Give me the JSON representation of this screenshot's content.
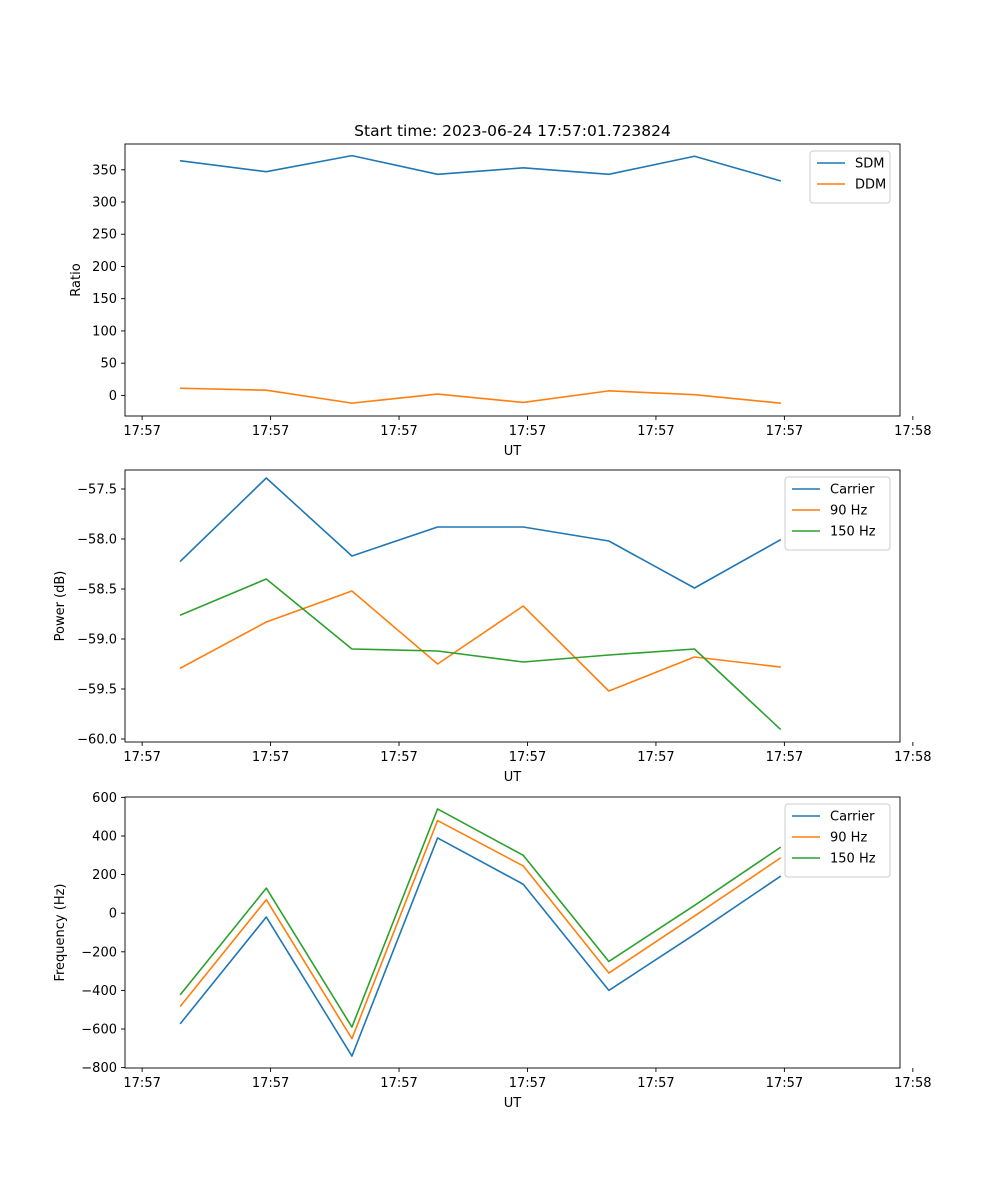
{
  "chart_data": [
    {
      "type": "line",
      "title": "Start time: 2023-06-24 17:57:01.723824",
      "xlabel": "UT",
      "ylabel": "Ratio",
      "x": [
        1,
        2,
        3,
        4,
        5,
        6,
        7,
        8
      ],
      "xlim": [
        0.35,
        9.4
      ],
      "xticks": [
        0.55,
        2.05,
        3.55,
        5.05,
        6.55,
        8.05,
        9.55
      ],
      "xtick_labels": [
        "17:57",
        "17:57",
        "17:57",
        "17:57",
        "17:57",
        "17:57",
        "17:58"
      ],
      "ylim": [
        -32,
        390
      ],
      "yticks": [
        0,
        50,
        100,
        150,
        200,
        250,
        300,
        350
      ],
      "ytick_labels": [
        "0",
        "50",
        "100",
        "150",
        "200",
        "250",
        "300",
        "350"
      ],
      "grid": false,
      "legend_position": "top-right",
      "series": [
        {
          "name": "SDM",
          "color": "#1f77b4",
          "values": [
            364,
            347,
            372,
            343,
            353,
            343,
            371,
            333
          ]
        },
        {
          "name": "DDM",
          "color": "#ff7f0e",
          "values": [
            11,
            8,
            -12,
            2,
            -11,
            7,
            1,
            -12
          ]
        }
      ]
    },
    {
      "type": "line",
      "title": "",
      "xlabel": "UT",
      "ylabel": "Power (dB)",
      "x": [
        1,
        2,
        3,
        4,
        5,
        6,
        7,
        8
      ],
      "xlim": [
        0.35,
        9.4
      ],
      "xticks": [
        0.55,
        2.05,
        3.55,
        5.05,
        6.55,
        8.05,
        9.55
      ],
      "xtick_labels": [
        "17:57",
        "17:57",
        "17:57",
        "17:57",
        "17:57",
        "17:57",
        "17:58"
      ],
      "ylim": [
        -60.03,
        -57.31
      ],
      "yticks": [
        -60.0,
        -59.5,
        -59.0,
        -58.5,
        -58.0,
        -57.5
      ],
      "ytick_labels": [
        "−60.0",
        "−59.5",
        "−59.0",
        "−58.5",
        "−58.0",
        "−57.5"
      ],
      "grid": false,
      "legend_position": "top-right",
      "series": [
        {
          "name": "Carrier",
          "color": "#1f77b4",
          "values": [
            -58.22,
            -57.39,
            -58.17,
            -57.88,
            -57.88,
            -58.02,
            -58.49,
            -58.01
          ]
        },
        {
          "name": "90 Hz",
          "color": "#ff7f0e",
          "values": [
            -59.29,
            -58.83,
            -58.52,
            -59.25,
            -58.67,
            -59.52,
            -59.18,
            -59.28
          ]
        },
        {
          "name": "150 Hz",
          "color": "#2ca02c",
          "values": [
            -58.76,
            -58.4,
            -59.1,
            -59.12,
            -59.23,
            -59.16,
            -59.1,
            -59.9
          ]
        }
      ]
    },
    {
      "type": "line",
      "title": "",
      "xlabel": "UT",
      "ylabel": "Frequency (Hz)",
      "x": [
        1,
        2,
        3,
        4,
        5,
        6,
        7,
        8
      ],
      "xlim": [
        0.35,
        9.4
      ],
      "xticks": [
        0.55,
        2.05,
        3.55,
        5.05,
        6.55,
        8.05,
        9.55
      ],
      "xtick_labels": [
        "17:57",
        "17:57",
        "17:57",
        "17:57",
        "17:57",
        "17:57",
        "17:58"
      ],
      "ylim": [
        -802,
        602
      ],
      "yticks": [
        -800,
        -600,
        -400,
        -200,
        0,
        200,
        400,
        600
      ],
      "ytick_labels": [
        "−800",
        "−600",
        "−400",
        "−200",
        "0",
        "200",
        "400",
        "600"
      ],
      "grid": false,
      "legend_position": "top-right",
      "series": [
        {
          "name": "Carrier",
          "color": "#1f77b4",
          "values": [
            -570,
            -20,
            -740,
            390,
            150,
            -400,
            -110,
            190
          ]
        },
        {
          "name": "90 Hz",
          "color": "#ff7f0e",
          "values": [
            -480,
            70,
            -650,
            480,
            245,
            -310,
            -15,
            285
          ]
        },
        {
          "name": "150 Hz",
          "color": "#2ca02c",
          "values": [
            -420,
            130,
            -590,
            540,
            300,
            -250,
            40,
            340
          ]
        }
      ]
    }
  ]
}
